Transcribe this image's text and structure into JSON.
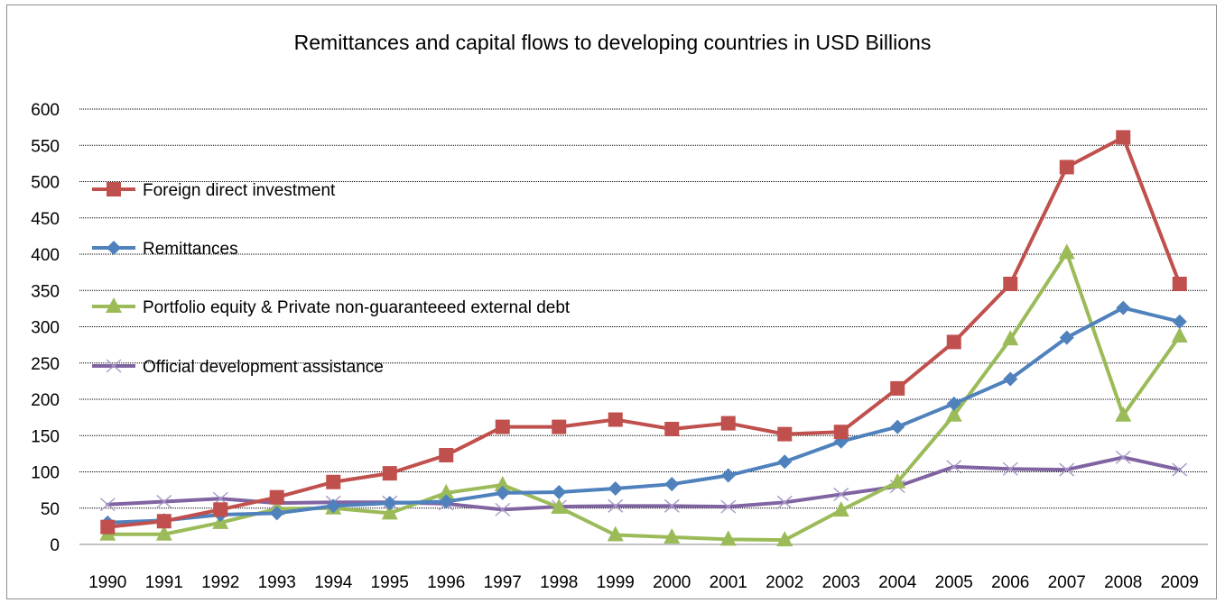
{
  "chart_data": {
    "type": "line",
    "title": "Remittances and capital flows to developing countries in USD Billions",
    "xlabel": "",
    "ylabel": "",
    "categories": [
      "1990",
      "1991",
      "1992",
      "1993",
      "1994",
      "1995",
      "1996",
      "1997",
      "1998",
      "1999",
      "2000",
      "2001",
      "2002",
      "2003",
      "2004",
      "2005",
      "2006",
      "2007",
      "2008",
      "2009"
    ],
    "ylim": [
      0,
      600
    ],
    "yticks": [
      0,
      50,
      100,
      150,
      200,
      250,
      300,
      350,
      400,
      450,
      500,
      550,
      600
    ],
    "grid": "horizontal dotted",
    "legend_position": "left",
    "series": [
      {
        "name": "Foreign direct investment",
        "color": "#c0504d",
        "marker": "square",
        "values": [
          24,
          32,
          48,
          65,
          86,
          98,
          123,
          162,
          162,
          172,
          159,
          167,
          152,
          155,
          215,
          279,
          359,
          520,
          561,
          359
        ]
      },
      {
        "name": "Remittances",
        "color": "#4f81bd",
        "marker": "diamond",
        "values": [
          30,
          33,
          41,
          43,
          53,
          57,
          59,
          71,
          72,
          77,
          83,
          95,
          114,
          142,
          162,
          194,
          228,
          285,
          326,
          307
        ]
      },
      {
        "name": "Portfolio equity & Private non-guaranteeed external debt",
        "color": "#9bbb59",
        "marker": "triangle",
        "values": [
          14,
          14,
          30,
          49,
          50,
          43,
          71,
          82,
          51,
          13,
          10,
          7,
          6,
          47,
          86,
          178,
          283,
          402,
          178,
          287
        ]
      },
      {
        "name": "Official development assistance",
        "color": "#8064a2",
        "marker": "x",
        "values": [
          55,
          59,
          63,
          57,
          58,
          58,
          56,
          48,
          52,
          53,
          53,
          52,
          58,
          69,
          80,
          107,
          104,
          103,
          120,
          103
        ]
      }
    ]
  }
}
